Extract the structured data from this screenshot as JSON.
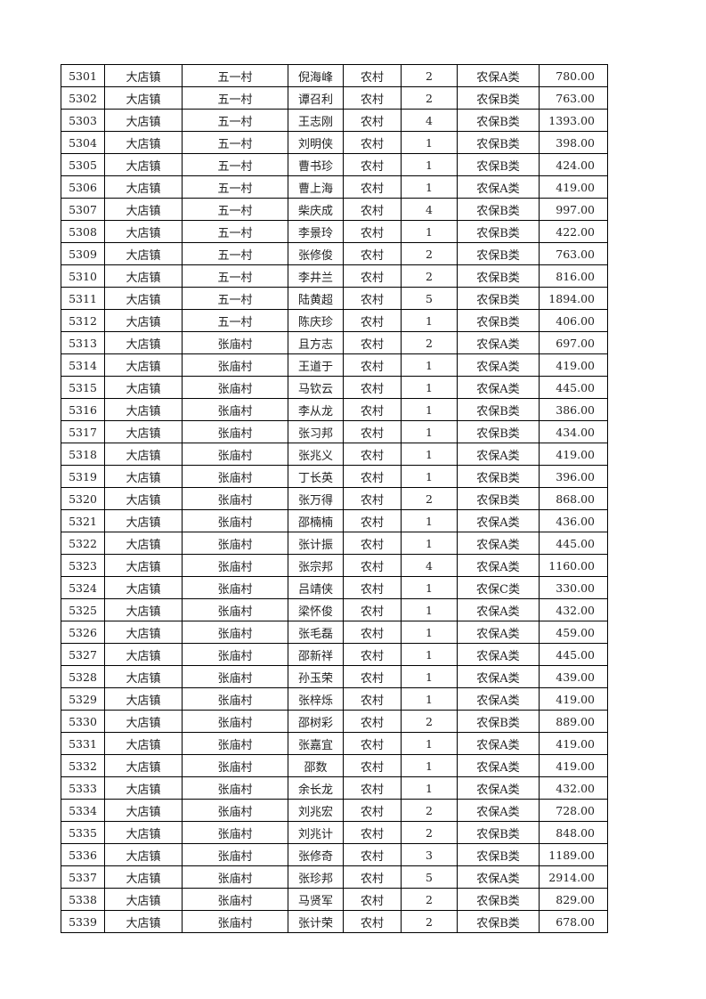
{
  "table": {
    "rows": [
      [
        "5301",
        "大店镇",
        "五一村",
        "倪海峰",
        "农村",
        "2",
        "农保A类",
        "780.00"
      ],
      [
        "5302",
        "大店镇",
        "五一村",
        "谭召利",
        "农村",
        "2",
        "农保B类",
        "763.00"
      ],
      [
        "5303",
        "大店镇",
        "五一村",
        "王志刚",
        "农村",
        "4",
        "农保B类",
        "1393.00"
      ],
      [
        "5304",
        "大店镇",
        "五一村",
        "刘明侠",
        "农村",
        "1",
        "农保B类",
        "398.00"
      ],
      [
        "5305",
        "大店镇",
        "五一村",
        "曹书珍",
        "农村",
        "1",
        "农保B类",
        "424.00"
      ],
      [
        "5306",
        "大店镇",
        "五一村",
        "曹上海",
        "农村",
        "1",
        "农保A类",
        "419.00"
      ],
      [
        "5307",
        "大店镇",
        "五一村",
        "柴庆成",
        "农村",
        "4",
        "农保B类",
        "997.00"
      ],
      [
        "5308",
        "大店镇",
        "五一村",
        "李景玲",
        "农村",
        "1",
        "农保B类",
        "422.00"
      ],
      [
        "5309",
        "大店镇",
        "五一村",
        "张修俊",
        "农村",
        "2",
        "农保B类",
        "763.00"
      ],
      [
        "5310",
        "大店镇",
        "五一村",
        "李井兰",
        "农村",
        "2",
        "农保B类",
        "816.00"
      ],
      [
        "5311",
        "大店镇",
        "五一村",
        "陆黄超",
        "农村",
        "5",
        "农保B类",
        "1894.00"
      ],
      [
        "5312",
        "大店镇",
        "五一村",
        "陈庆珍",
        "农村",
        "1",
        "农保B类",
        "406.00"
      ],
      [
        "5313",
        "大店镇",
        "张庙村",
        "且方志",
        "农村",
        "2",
        "农保A类",
        "697.00"
      ],
      [
        "5314",
        "大店镇",
        "张庙村",
        "王道于",
        "农村",
        "1",
        "农保A类",
        "419.00"
      ],
      [
        "5315",
        "大店镇",
        "张庙村",
        "马钦云",
        "农村",
        "1",
        "农保A类",
        "445.00"
      ],
      [
        "5316",
        "大店镇",
        "张庙村",
        "李从龙",
        "农村",
        "1",
        "农保B类",
        "386.00"
      ],
      [
        "5317",
        "大店镇",
        "张庙村",
        "张习邦",
        "农村",
        "1",
        "农保B类",
        "434.00"
      ],
      [
        "5318",
        "大店镇",
        "张庙村",
        "张兆义",
        "农村",
        "1",
        "农保A类",
        "419.00"
      ],
      [
        "5319",
        "大店镇",
        "张庙村",
        "丁长英",
        "农村",
        "1",
        "农保B类",
        "396.00"
      ],
      [
        "5320",
        "大店镇",
        "张庙村",
        "张万得",
        "农村",
        "2",
        "农保B类",
        "868.00"
      ],
      [
        "5321",
        "大店镇",
        "张庙村",
        "邵楠楠",
        "农村",
        "1",
        "农保A类",
        "436.00"
      ],
      [
        "5322",
        "大店镇",
        "张庙村",
        "张计振",
        "农村",
        "1",
        "农保A类",
        "445.00"
      ],
      [
        "5323",
        "大店镇",
        "张庙村",
        "张宗邦",
        "农村",
        "4",
        "农保A类",
        "1160.00"
      ],
      [
        "5324",
        "大店镇",
        "张庙村",
        "吕靖侠",
        "农村",
        "1",
        "农保C类",
        "330.00"
      ],
      [
        "5325",
        "大店镇",
        "张庙村",
        "梁怀俊",
        "农村",
        "1",
        "农保A类",
        "432.00"
      ],
      [
        "5326",
        "大店镇",
        "张庙村",
        "张毛磊",
        "农村",
        "1",
        "农保A类",
        "459.00"
      ],
      [
        "5327",
        "大店镇",
        "张庙村",
        "邵新祥",
        "农村",
        "1",
        "农保A类",
        "445.00"
      ],
      [
        "5328",
        "大店镇",
        "张庙村",
        "孙玉荣",
        "农村",
        "1",
        "农保A类",
        "439.00"
      ],
      [
        "5329",
        "大店镇",
        "张庙村",
        "张梓烁",
        "农村",
        "1",
        "农保A类",
        "419.00"
      ],
      [
        "5330",
        "大店镇",
        "张庙村",
        "邵树彩",
        "农村",
        "2",
        "农保B类",
        "889.00"
      ],
      [
        "5331",
        "大店镇",
        "张庙村",
        "张嘉宜",
        "农村",
        "1",
        "农保A类",
        "419.00"
      ],
      [
        "5332",
        "大店镇",
        "张庙村",
        "邵数",
        "农村",
        "1",
        "农保A类",
        "419.00"
      ],
      [
        "5333",
        "大店镇",
        "张庙村",
        "余长龙",
        "农村",
        "1",
        "农保A类",
        "432.00"
      ],
      [
        "5334",
        "大店镇",
        "张庙村",
        "刘兆宏",
        "农村",
        "2",
        "农保A类",
        "728.00"
      ],
      [
        "5335",
        "大店镇",
        "张庙村",
        "刘兆计",
        "农村",
        "2",
        "农保B类",
        "848.00"
      ],
      [
        "5336",
        "大店镇",
        "张庙村",
        "张修奇",
        "农村",
        "3",
        "农保B类",
        "1189.00"
      ],
      [
        "5337",
        "大店镇",
        "张庙村",
        "张珍邦",
        "农村",
        "5",
        "农保A类",
        "2914.00"
      ],
      [
        "5338",
        "大店镇",
        "张庙村",
        "马贤军",
        "农村",
        "2",
        "农保B类",
        "829.00"
      ],
      [
        "5339",
        "大店镇",
        "张庙村",
        "张计荣",
        "农村",
        "2",
        "农保B类",
        "678.00"
      ]
    ]
  }
}
